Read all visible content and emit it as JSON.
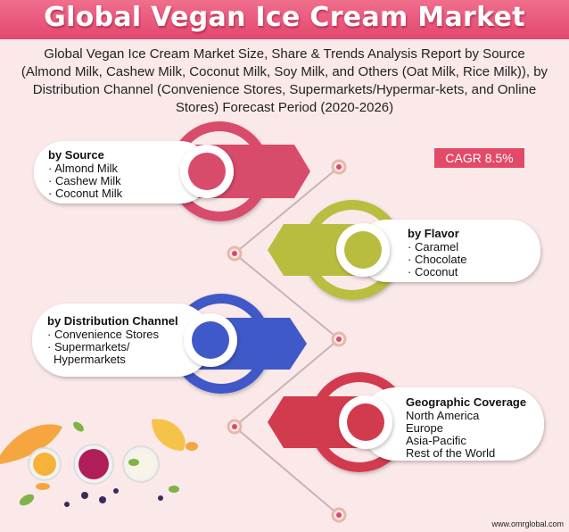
{
  "title": "Global Vegan Ice Cream Market",
  "subtitle": "Global Vegan Ice Cream Market Size, Share & Trends Analysis Report by Source (Almond Milk, Cashew Milk, Coconut Milk, Soy Milk, and Others (Oat Milk, Rice Milk)), by Distribution Channel (Convenience Stores, Supermarkets/Hypermar-kets, and Online Stores) Forecast Period (2020-2026)",
  "cagr": "CAGR 8.5%",
  "segments": {
    "source": {
      "heading": "by Source",
      "items": [
        "Almond Milk",
        "Cashew Milk",
        "Coconut Milk"
      ],
      "color": "#d94b6b"
    },
    "flavor": {
      "heading": "by Flavor",
      "items": [
        "Caramel",
        "Chocolate",
        "Coconut"
      ],
      "color": "#b9bd3f"
    },
    "distribution": {
      "heading": "by Distribution Channel",
      "items": [
        "Convenience Stores",
        "Supermarkets/",
        "Hypermarkets"
      ],
      "color": "#3f59c8"
    },
    "geography": {
      "heading": "Geographic Coverage",
      "items": [
        "North America",
        "Europe",
        "Asia-Pacific",
        "Rest of the World"
      ],
      "color": "#d23b4d"
    }
  },
  "footer": "www.omrglobal.com"
}
